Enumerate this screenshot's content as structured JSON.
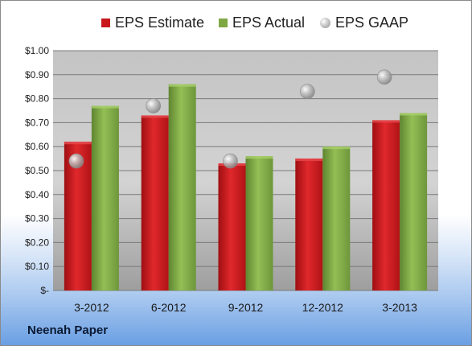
{
  "chart_data": {
    "type": "bar",
    "categories": [
      "3-2012",
      "6-2012",
      "9-2012",
      "12-2012",
      "3-2013"
    ],
    "series": [
      {
        "name": "EPS Estimate",
        "kind": "bar",
        "color": "#c8161b",
        "values": [
          0.62,
          0.73,
          0.53,
          0.55,
          0.71
        ]
      },
      {
        "name": "EPS Actual",
        "kind": "bar",
        "color": "#7fa843",
        "values": [
          0.77,
          0.86,
          0.56,
          0.6,
          0.74
        ]
      },
      {
        "name": "EPS GAAP",
        "kind": "scatter",
        "color": "#b0b0b0",
        "values": [
          0.54,
          0.77,
          0.54,
          0.83,
          0.89
        ]
      }
    ],
    "yticks": [
      "$-",
      "$0.10",
      "$0.20",
      "$0.30",
      "$0.40",
      "$0.50",
      "$0.60",
      "$0.70",
      "$0.80",
      "$0.90",
      "$1.00"
    ],
    "ylim": [
      0,
      1.0
    ],
    "grid": true,
    "legend_position": "top"
  },
  "footer": {
    "company": "Neenah Paper"
  }
}
